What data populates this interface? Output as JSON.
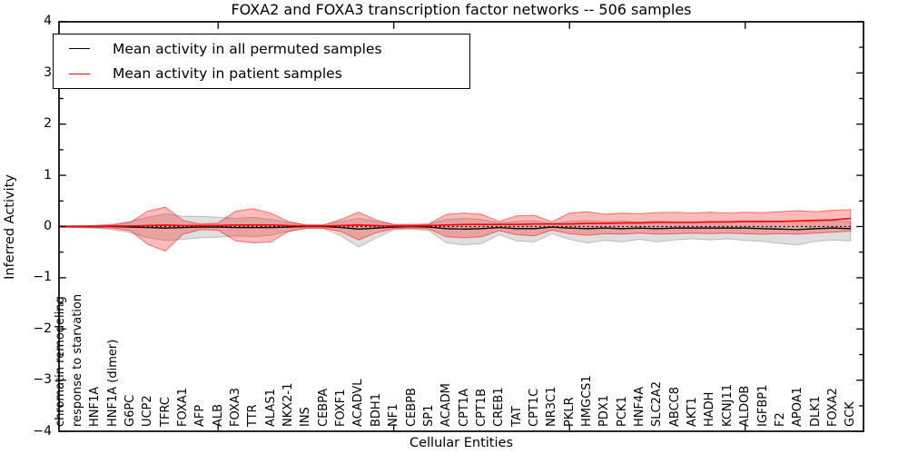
{
  "title": "FOXA2 and FOXA3 transcription factor networks -- 506 samples",
  "axes": {
    "xlabel": "Cellular Entities",
    "ylabel": "Inferred Activity"
  },
  "legend": {
    "items": [
      {
        "label": "Mean activity in all permuted samples",
        "color": "#000000"
      },
      {
        "label": "Mean activity in patient samples",
        "color": "#ff0000"
      }
    ]
  },
  "colors": {
    "frame": "#000000",
    "permuted_line": "#000000",
    "patient_line": "#ff0000",
    "permuted_band_fill": "rgba(128,128,128,0.25)",
    "permuted_band_edge": "rgba(128,128,128,0.45)",
    "patient_band_fill": "rgba(255,0,0,0.27)",
    "patient_band_edge": "rgba(255,0,0,0.5)",
    "zero_line": "#000000"
  },
  "chart_data": {
    "type": "line",
    "title": "FOXA2 and FOXA3 transcription factor networks -- 506 samples",
    "xlabel": "Cellular Entities",
    "ylabel": "Inferred Activity",
    "ylim": [
      -4,
      4
    ],
    "yticks": [
      4,
      3,
      2,
      1,
      0,
      -1,
      -2,
      -3,
      -4
    ],
    "ytick_minor_step": 0.5,
    "xtick_marks": [
      10,
      20,
      30,
      40
    ],
    "grid": false,
    "legend_position": "upper left",
    "zero_reference_line": {
      "style": "dotted",
      "value": 0
    },
    "categories": [
      "chromatin remodeling",
      "response to starvation",
      "HNF1A",
      "HNF1A (dimer)",
      "G6PC",
      "UCP2",
      "TFRC",
      "FOXA1",
      "AFP",
      "ALB",
      "FOXA3",
      "TTR",
      "ALAS1",
      "NKX2-1",
      "INS",
      "CEBPA",
      "FOXF1",
      "ACADVL",
      "BDH1",
      "NF1",
      "CEBPB",
      "SP1",
      "ACADM",
      "CPT1A",
      "CPT1B",
      "CREB1",
      "TAT",
      "CPT1C",
      "NR3C1",
      "PKLR",
      "HMGCS1",
      "PDX1",
      "PCK1",
      "HNF4A",
      "SLC2A2",
      "ABCC8",
      "AKT1",
      "HADH",
      "KCNJ11",
      "ALDOB",
      "IGFBP1",
      "F2",
      "APOA1",
      "DLK1",
      "FOXA2",
      "GCK"
    ],
    "series": [
      {
        "name": "Mean activity in all permuted samples",
        "color": "#000000",
        "values": [
          0,
          0,
          0,
          0,
          -0.01,
          -0.02,
          -0.03,
          -0.02,
          -0.01,
          -0.01,
          -0.02,
          -0.02,
          -0.02,
          -0.01,
          0,
          0,
          -0.02,
          -0.05,
          -0.03,
          -0.01,
          0,
          -0.01,
          -0.04,
          -0.05,
          -0.04,
          -0.02,
          -0.04,
          -0.04,
          -0.01,
          -0.03,
          -0.04,
          -0.03,
          -0.04,
          -0.03,
          -0.04,
          -0.03,
          -0.03,
          -0.03,
          -0.03,
          -0.03,
          -0.04,
          -0.05,
          -0.06,
          -0.04,
          -0.03,
          -0.04
        ]
      },
      {
        "name": "Mean activity in patient samples",
        "color": "#ff0000",
        "values": [
          0,
          0,
          0,
          0.01,
          0.01,
          0.02,
          0.03,
          0.02,
          0.02,
          0.02,
          0.03,
          0.03,
          0.03,
          0.02,
          0.01,
          0.01,
          0.02,
          0.03,
          0.02,
          0.01,
          0.01,
          0.02,
          0.03,
          0.04,
          0.04,
          0.04,
          0.04,
          0.05,
          0.05,
          0.05,
          0.06,
          0.06,
          0.07,
          0.07,
          0.08,
          0.08,
          0.08,
          0.09,
          0.09,
          0.1,
          0.1,
          0.1,
          0.11,
          0.12,
          0.13,
          0.16
        ]
      }
    ],
    "bands": [
      {
        "name": "permuted samples range",
        "color": "gray",
        "upper": [
          0.01,
          0.02,
          0.02,
          0.05,
          0.1,
          0.18,
          0.25,
          0.2,
          0.2,
          0.18,
          0.16,
          0.18,
          0.14,
          0.08,
          0.03,
          0.03,
          0.1,
          0.16,
          0.1,
          0.04,
          0.03,
          0.05,
          0.14,
          0.16,
          0.14,
          0.07,
          0.1,
          0.11,
          0.06,
          0.1,
          0.12,
          0.09,
          0.11,
          0.09,
          0.11,
          0.09,
          0.09,
          0.1,
          0.09,
          0.1,
          0.11,
          0.09,
          0.11,
          0.09,
          0.11,
          0.09
        ],
        "lower": [
          -0.01,
          -0.02,
          -0.03,
          -0.06,
          -0.12,
          -0.22,
          -0.27,
          -0.25,
          -0.22,
          -0.21,
          -0.18,
          -0.2,
          -0.17,
          -0.09,
          -0.04,
          -0.04,
          -0.18,
          -0.4,
          -0.22,
          -0.06,
          -0.05,
          -0.08,
          -0.32,
          -0.36,
          -0.33,
          -0.16,
          -0.28,
          -0.3,
          -0.14,
          -0.25,
          -0.32,
          -0.27,
          -0.3,
          -0.25,
          -0.3,
          -0.26,
          -0.24,
          -0.26,
          -0.24,
          -0.27,
          -0.29,
          -0.33,
          -0.36,
          -0.29,
          -0.26,
          -0.28
        ]
      },
      {
        "name": "patient samples range",
        "color": "red",
        "upper": [
          0.01,
          0.01,
          0.02,
          0.03,
          0.08,
          0.3,
          0.38,
          0.12,
          0.05,
          0.07,
          0.3,
          0.35,
          0.26,
          0.1,
          0.03,
          0.03,
          0.14,
          0.28,
          0.13,
          0.04,
          0.04,
          0.05,
          0.24,
          0.26,
          0.24,
          0.1,
          0.21,
          0.22,
          0.09,
          0.26,
          0.29,
          0.24,
          0.26,
          0.25,
          0.27,
          0.28,
          0.26,
          0.28,
          0.26,
          0.28,
          0.27,
          0.29,
          0.31,
          0.29,
          0.32,
          0.33
        ],
        "lower": [
          -0.01,
          -0.01,
          -0.02,
          -0.03,
          -0.08,
          -0.35,
          -0.48,
          -0.15,
          -0.06,
          -0.07,
          -0.28,
          -0.32,
          -0.3,
          -0.1,
          -0.03,
          -0.03,
          -0.1,
          -0.26,
          -0.12,
          -0.04,
          -0.03,
          -0.05,
          -0.2,
          -0.22,
          -0.2,
          -0.08,
          -0.16,
          -0.18,
          -0.07,
          -0.14,
          -0.17,
          -0.14,
          -0.15,
          -0.13,
          -0.15,
          -0.14,
          -0.13,
          -0.14,
          -0.13,
          -0.14,
          -0.15,
          -0.14,
          -0.15,
          -0.13,
          -0.11,
          -0.09
        ]
      }
    ]
  }
}
